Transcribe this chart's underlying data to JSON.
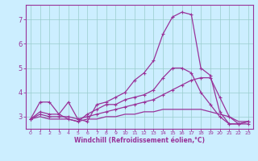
{
  "xlabel": "Windchill (Refroidissement éolien,°C)",
  "bg_color": "#cceeff",
  "line_color": "#993399",
  "grid_color": "#99cccc",
  "spine_color": "#993399",
  "tick_color": "#993399",
  "label_color": "#993399",
  "xlim": [
    -0.5,
    23.5
  ],
  "ylim": [
    2.5,
    7.6
  ],
  "yticks": [
    3,
    4,
    5,
    6,
    7
  ],
  "xticks": [
    0,
    1,
    2,
    3,
    4,
    5,
    6,
    7,
    8,
    9,
    10,
    11,
    12,
    13,
    14,
    15,
    16,
    17,
    18,
    19,
    20,
    21,
    22,
    23
  ],
  "lines": [
    {
      "x": [
        0,
        1,
        2,
        3,
        4,
        5,
        6,
        7,
        8,
        9,
        10,
        11,
        12,
        13,
        14,
        15,
        16,
        17,
        18,
        19,
        20,
        21,
        22,
        23
      ],
      "y": [
        2.9,
        3.6,
        3.6,
        3.1,
        3.6,
        2.9,
        2.8,
        3.5,
        3.6,
        3.8,
        4.0,
        4.5,
        4.8,
        5.3,
        6.4,
        7.1,
        7.3,
        7.2,
        5.0,
        4.7,
        3.2,
        2.7,
        2.7,
        2.8
      ],
      "marker": true
    },
    {
      "x": [
        0,
        1,
        2,
        3,
        4,
        5,
        6,
        7,
        8,
        9,
        10,
        11,
        12,
        13,
        14,
        15,
        16,
        17,
        18,
        19,
        20,
        21,
        22,
        23
      ],
      "y": [
        2.9,
        3.2,
        3.1,
        3.1,
        2.9,
        2.8,
        3.1,
        3.3,
        3.5,
        3.5,
        3.7,
        3.8,
        3.9,
        4.1,
        4.6,
        5.0,
        5.0,
        4.8,
        4.0,
        3.5,
        3.0,
        2.7,
        2.7,
        2.8
      ],
      "marker": true
    },
    {
      "x": [
        0,
        1,
        2,
        3,
        4,
        5,
        6,
        7,
        8,
        9,
        10,
        11,
        12,
        13,
        14,
        15,
        16,
        17,
        18,
        19,
        20,
        21,
        22,
        23
      ],
      "y": [
        2.9,
        3.1,
        3.0,
        3.0,
        3.0,
        2.9,
        3.0,
        3.1,
        3.2,
        3.3,
        3.4,
        3.5,
        3.6,
        3.7,
        3.9,
        4.1,
        4.3,
        4.5,
        4.6,
        4.6,
        3.8,
        3.0,
        2.7,
        2.7
      ],
      "marker": true
    },
    {
      "x": [
        0,
        1,
        2,
        3,
        4,
        5,
        6,
        7,
        8,
        9,
        10,
        11,
        12,
        13,
        14,
        15,
        16,
        17,
        18,
        19,
        20,
        21,
        22,
        23
      ],
      "y": [
        2.9,
        3.0,
        2.9,
        2.9,
        2.9,
        2.8,
        2.9,
        2.9,
        3.0,
        3.0,
        3.1,
        3.1,
        3.2,
        3.2,
        3.3,
        3.3,
        3.3,
        3.3,
        3.3,
        3.2,
        3.1,
        3.0,
        2.8,
        2.8
      ],
      "marker": false
    }
  ]
}
